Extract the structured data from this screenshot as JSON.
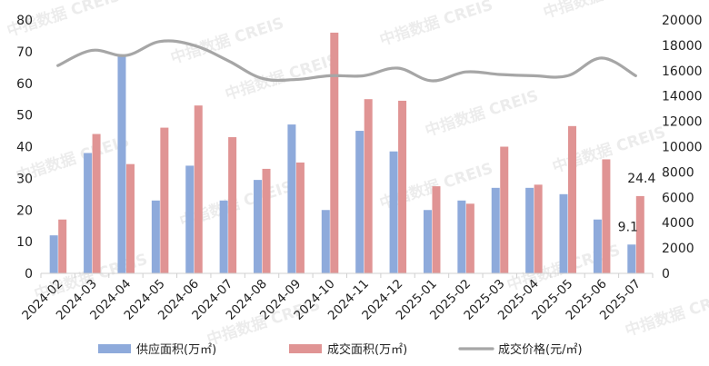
{
  "colors": {
    "supply": "#8eaadb",
    "sales": "#e09494",
    "price": "#a6a6a6",
    "axis": "#d0d0d0",
    "text": "#222222"
  },
  "watermark": "中指数据 CREIS",
  "chart_data": {
    "type": "bar",
    "categories": [
      "2024-02",
      "2024-03",
      "2024-04",
      "2024-05",
      "2024-06",
      "2024-07",
      "2024-08",
      "2024-09",
      "2024-10",
      "2024-11",
      "2024-12",
      "2025-01",
      "2025-02",
      "2025-03",
      "2025-04",
      "2025-05",
      "2025-06",
      "2025-07"
    ],
    "series": [
      {
        "name": "供应面积(万㎡)",
        "type": "bar",
        "axis": "left",
        "values": [
          12,
          38,
          69,
          23,
          34,
          23,
          29.5,
          47,
          20,
          45,
          38.5,
          20,
          23,
          27,
          27,
          25,
          17,
          9.1
        ]
      },
      {
        "name": "成交面积(万㎡)",
        "type": "bar",
        "axis": "left",
        "values": [
          17,
          44,
          34.5,
          46,
          53,
          43,
          33,
          35,
          76,
          55,
          54.5,
          27.5,
          22,
          40,
          28,
          46.5,
          36,
          24.4
        ]
      },
      {
        "name": "成交价格(元/㎡)",
        "type": "line",
        "axis": "right",
        "values": [
          16400,
          17600,
          17200,
          18300,
          18000,
          16800,
          15400,
          15300,
          15600,
          15600,
          16200,
          15200,
          15900,
          15700,
          15600,
          15600,
          17000,
          15600
        ]
      }
    ],
    "y_left": {
      "min": 0,
      "max": 80,
      "ticks": [
        0,
        10,
        20,
        30,
        40,
        50,
        60,
        70,
        80
      ]
    },
    "y_right": {
      "min": 0,
      "max": 20000,
      "ticks": [
        0,
        2000,
        4000,
        6000,
        8000,
        10000,
        12000,
        14000,
        16000,
        18000,
        20000
      ]
    },
    "data_labels": [
      {
        "series": 0,
        "index": 17,
        "text": "9.1"
      },
      {
        "series": 1,
        "index": 17,
        "text": "24.4"
      }
    ],
    "legend_position": "bottom",
    "grid": false
  }
}
